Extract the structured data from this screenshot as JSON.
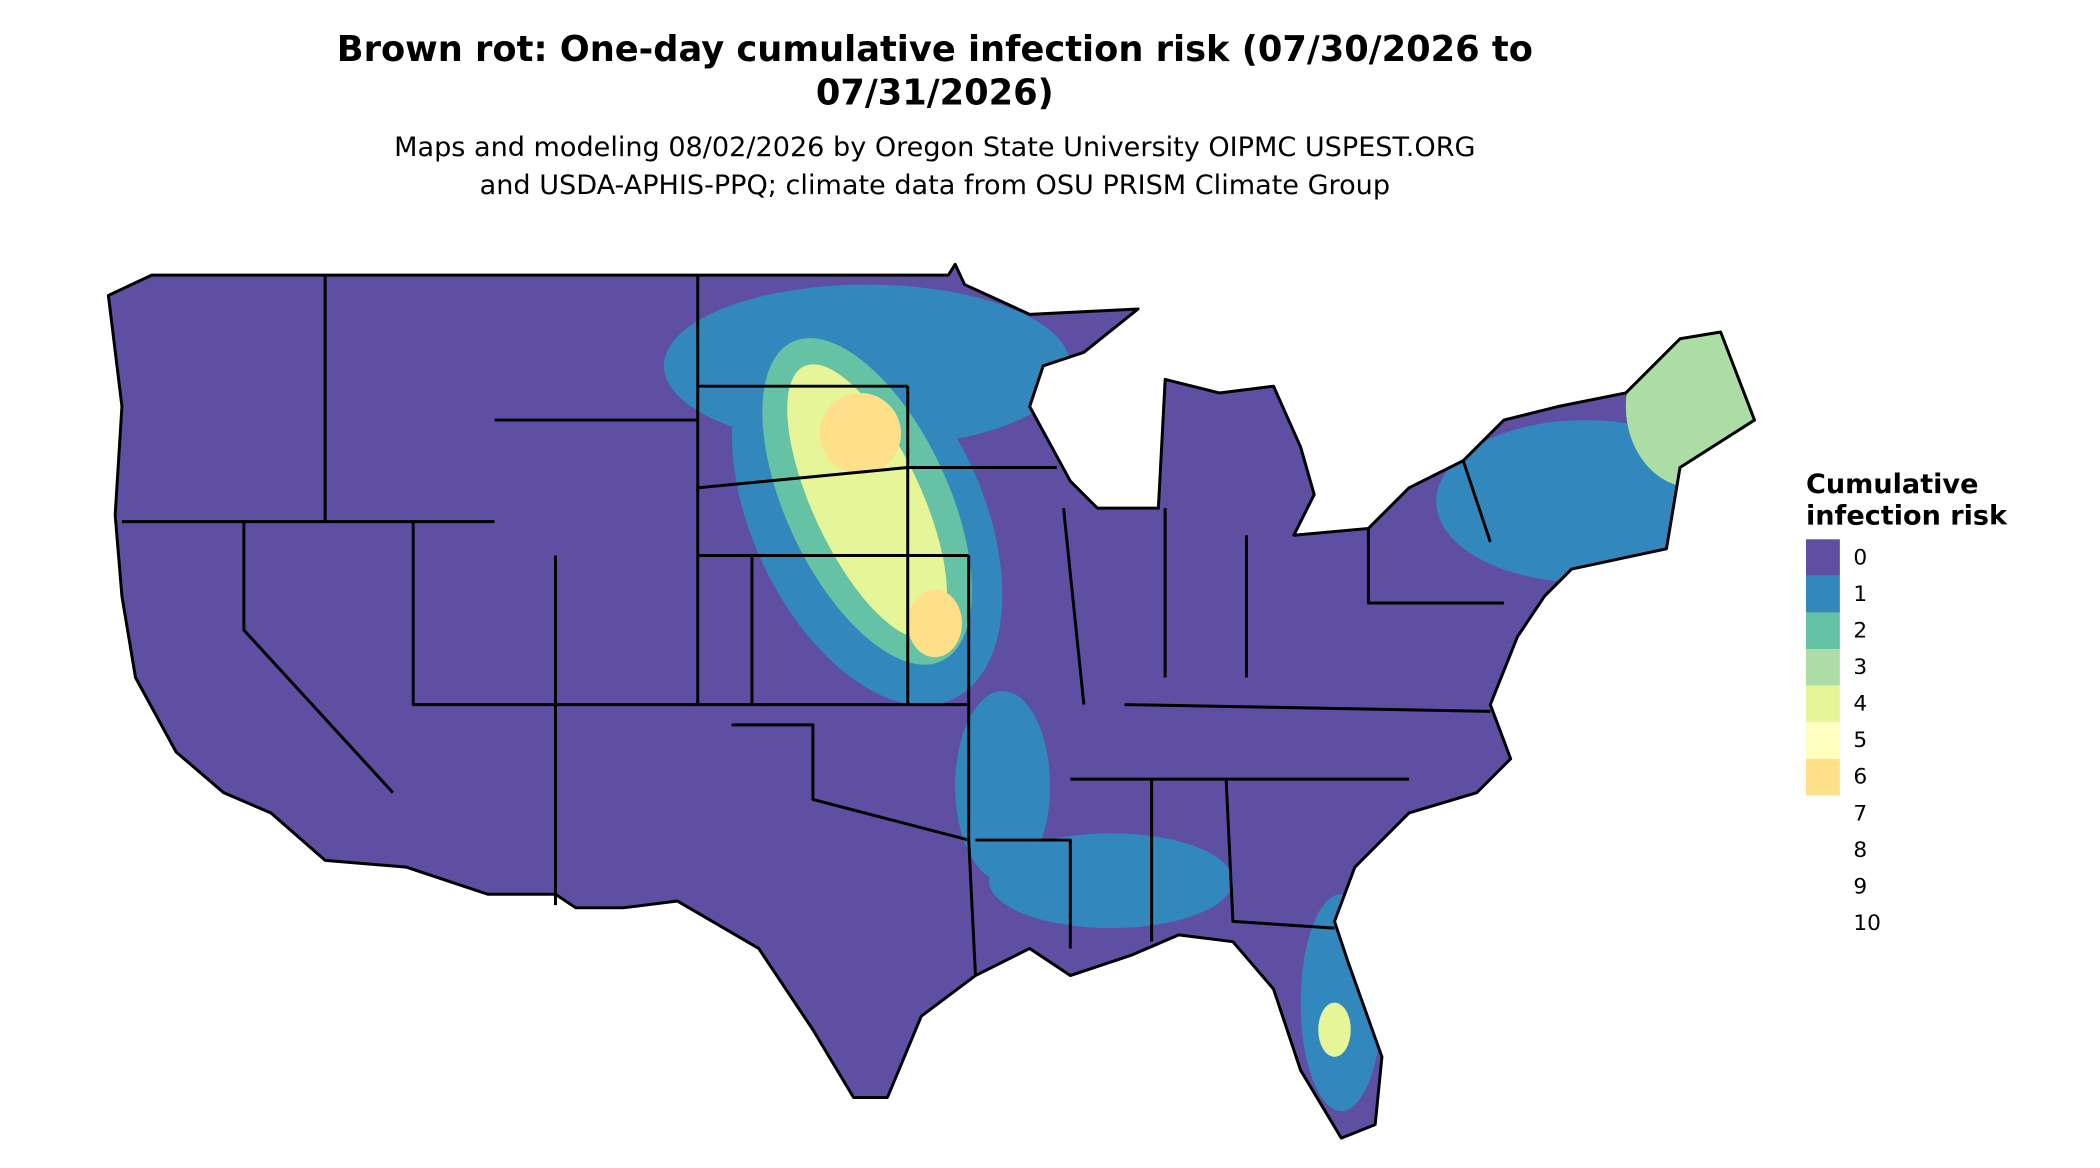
{
  "title": [
    "Brown rot: One-day cumulative infection risk (07/30/2026 to",
    "07/31/2026)"
  ],
  "subtitle": [
    "Maps and modeling 08/02/2026 by Oregon State University OIPMC USPEST.ORG",
    "and USDA-APHIS-PPQ; climate data from OSU PRISM Climate Group"
  ],
  "legend": {
    "title": [
      "Cumulative",
      "infection risk"
    ],
    "items": [
      {
        "label": "0",
        "color": "#5e4fa2"
      },
      {
        "label": "1",
        "color": "#3288bd"
      },
      {
        "label": "2",
        "color": "#66c2a5"
      },
      {
        "label": "3",
        "color": "#abdda4"
      },
      {
        "label": "4",
        "color": "#e6f598"
      },
      {
        "label": "5",
        "color": "#ffffbf"
      },
      {
        "label": "6",
        "color": "#fee08b"
      },
      {
        "label": "7"
      },
      {
        "label": "8"
      },
      {
        "label": "9"
      },
      {
        "label": "10"
      }
    ]
  }
}
